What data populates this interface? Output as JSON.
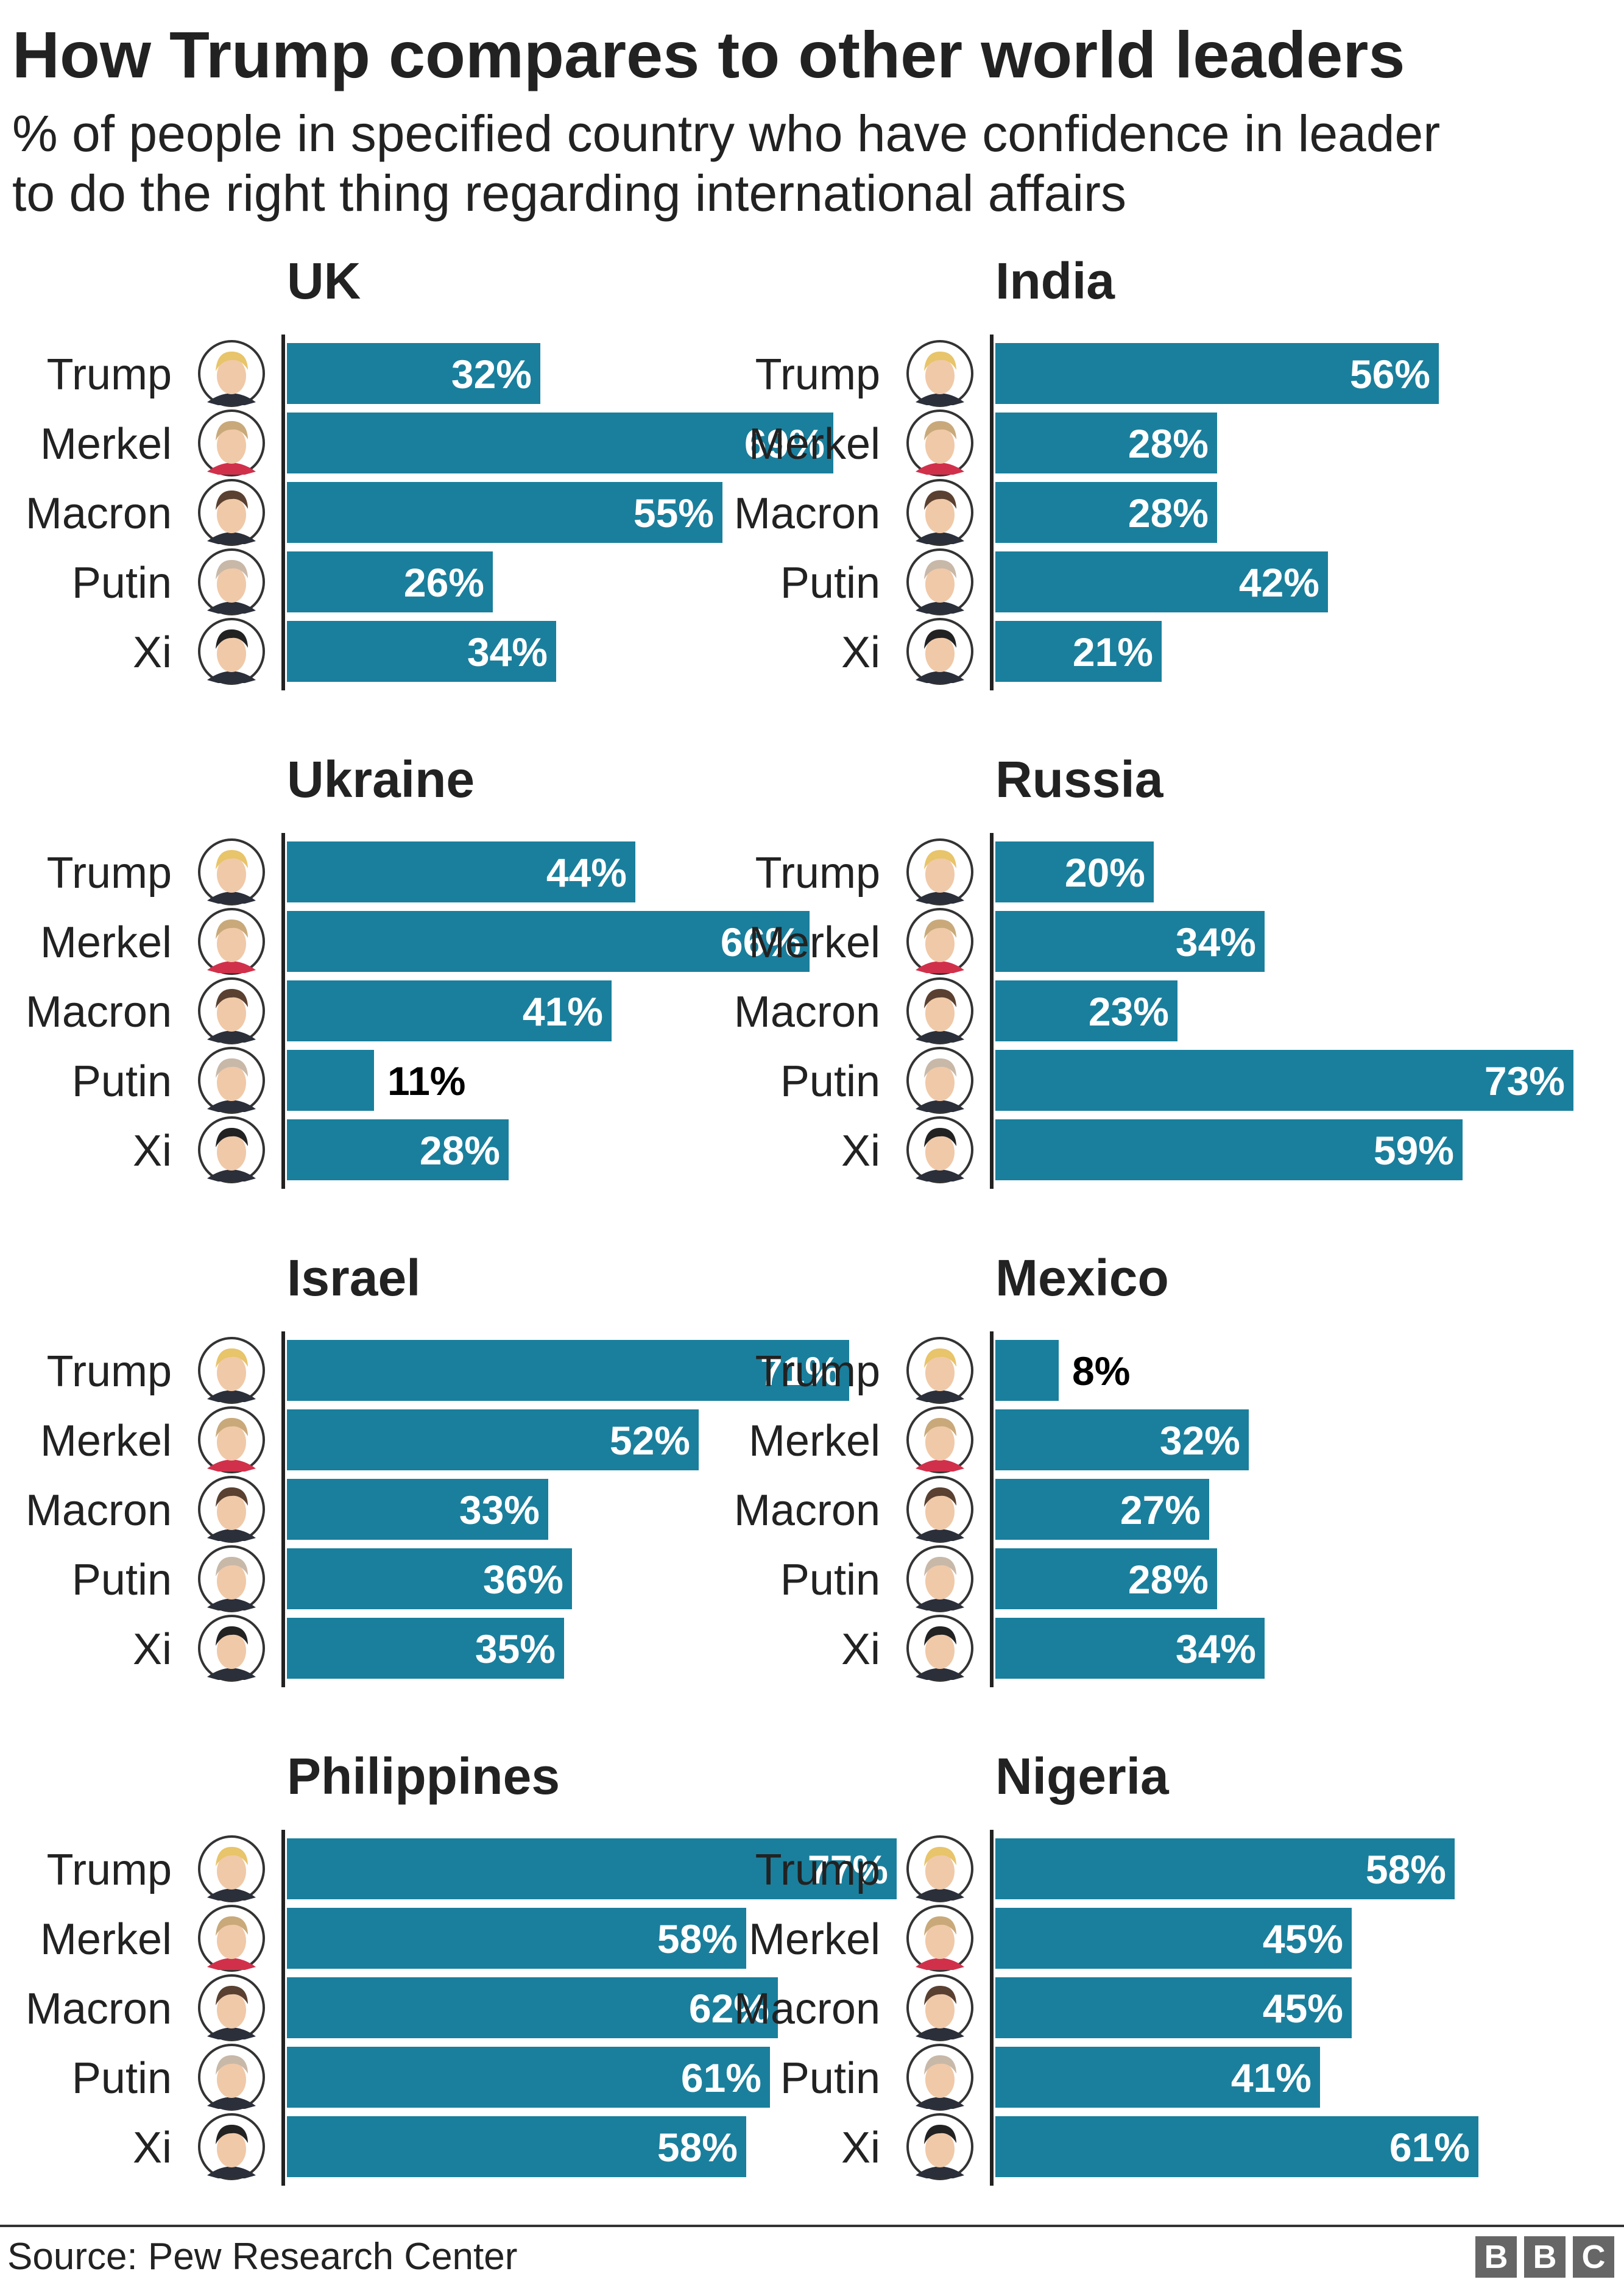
{
  "title": "How Trump compares to other world leaders",
  "subtitle_lines": [
    "% of people in specified country who have confidence in leader",
    "to do the right thing regarding international affairs"
  ],
  "colors": {
    "bar": "#1a7f9c",
    "label_inside": "#ffffff",
    "label_outside": "#000000",
    "axis": "#222222"
  },
  "leader_icons": {
    "Trump": "trump-portrait-icon",
    "Merkel": "merkel-portrait-icon",
    "Macron": "macron-portrait-icon",
    "Putin": "putin-portrait-icon",
    "Xi": "xi-portrait-icon"
  },
  "chart_data": [
    {
      "type": "bar",
      "orientation": "horizontal",
      "title": "UK",
      "categories": [
        "Trump",
        "Merkel",
        "Macron",
        "Putin",
        "Xi"
      ],
      "values": [
        32,
        69,
        55,
        26,
        34
      ],
      "unit": "%",
      "xlim": [
        0,
        100
      ]
    },
    {
      "type": "bar",
      "orientation": "horizontal",
      "title": "India",
      "categories": [
        "Trump",
        "Merkel",
        "Macron",
        "Putin",
        "Xi"
      ],
      "values": [
        56,
        28,
        28,
        42,
        21
      ],
      "unit": "%",
      "xlim": [
        0,
        100
      ]
    },
    {
      "type": "bar",
      "orientation": "horizontal",
      "title": "Ukraine",
      "categories": [
        "Trump",
        "Merkel",
        "Macron",
        "Putin",
        "Xi"
      ],
      "values": [
        44,
        66,
        41,
        11,
        28
      ],
      "unit": "%",
      "xlim": [
        0,
        100
      ]
    },
    {
      "type": "bar",
      "orientation": "horizontal",
      "title": "Russia",
      "categories": [
        "Trump",
        "Merkel",
        "Macron",
        "Putin",
        "Xi"
      ],
      "values": [
        20,
        34,
        23,
        73,
        59
      ],
      "unit": "%",
      "xlim": [
        0,
        100
      ]
    },
    {
      "type": "bar",
      "orientation": "horizontal",
      "title": "Israel",
      "categories": [
        "Trump",
        "Merkel",
        "Macron",
        "Putin",
        "Xi"
      ],
      "values": [
        71,
        52,
        33,
        36,
        35
      ],
      "unit": "%",
      "xlim": [
        0,
        100
      ]
    },
    {
      "type": "bar",
      "orientation": "horizontal",
      "title": "Mexico",
      "categories": [
        "Trump",
        "Merkel",
        "Macron",
        "Putin",
        "Xi"
      ],
      "values": [
        8,
        32,
        27,
        28,
        34
      ],
      "unit": "%",
      "xlim": [
        0,
        100
      ]
    },
    {
      "type": "bar",
      "orientation": "horizontal",
      "title": "Philippines",
      "categories": [
        "Trump",
        "Merkel",
        "Macron",
        "Putin",
        "Xi"
      ],
      "values": [
        77,
        58,
        62,
        61,
        58
      ],
      "unit": "%",
      "xlim": [
        0,
        100
      ]
    },
    {
      "type": "bar",
      "orientation": "horizontal",
      "title": "Nigeria",
      "categories": [
        "Trump",
        "Merkel",
        "Macron",
        "Putin",
        "Xi"
      ],
      "values": [
        58,
        45,
        45,
        41,
        61
      ],
      "unit": "%",
      "xlim": [
        0,
        100
      ]
    }
  ],
  "source": "Source: Pew Research Center",
  "logo_letters": [
    "B",
    "B",
    "C"
  ]
}
